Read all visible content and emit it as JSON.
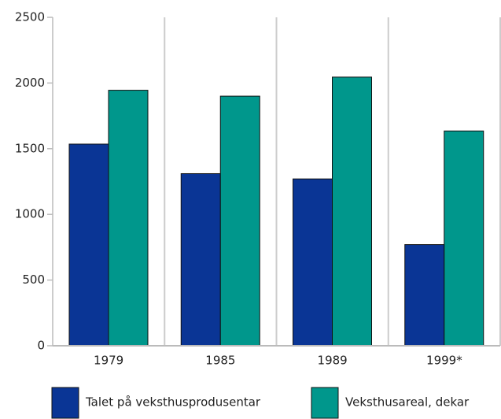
{
  "chart_data": {
    "type": "bar",
    "categories": [
      "1979",
      "1985",
      "1989",
      "1999*"
    ],
    "series": [
      {
        "name": "Talet på veksthusprodusentar",
        "color": "#0a3595",
        "values": [
          1535,
          1310,
          1270,
          770
        ]
      },
      {
        "name": "Veksthusareal, dekar",
        "color": "#00978c",
        "values": [
          1945,
          1900,
          2045,
          1635
        ]
      }
    ],
    "ylim": [
      0,
      2500
    ],
    "yticks": [
      0,
      500,
      1000,
      1500,
      2000,
      2500
    ],
    "grid": true
  }
}
